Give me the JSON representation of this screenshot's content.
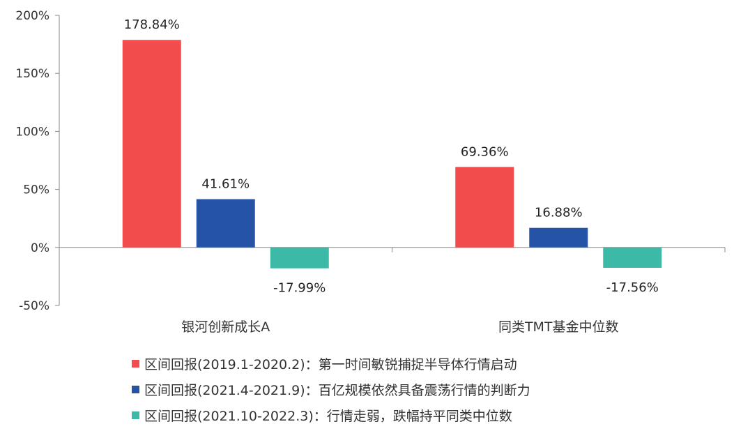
{
  "chart_data": {
    "type": "bar",
    "categories": [
      "银河创新成长A",
      "同类TMT基金中位数"
    ],
    "series": [
      {
        "name": "区间回报(2019.1-2020.2)：第一时间敏锐捕捉半导体行情启动",
        "values": [
          178.84,
          69.36
        ],
        "labels": [
          "178.84%",
          "69.36%"
        ],
        "color": "#f24c4c"
      },
      {
        "name": "区间回报(2021.4-2021.9)：百亿规模依然具备震荡行情的判断力",
        "values": [
          41.61,
          16.88
        ],
        "labels": [
          "41.61%",
          "16.88%"
        ],
        "color": "#2553a6"
      },
      {
        "name": "区间回报(2021.10-2022.3)：行情走弱，跌幅持平同类中位数",
        "values": [
          -17.99,
          -17.56
        ],
        "labels": [
          "-17.99%",
          "-17.56%"
        ],
        "color": "#3cb9a7"
      }
    ],
    "yticks": [
      {
        "value": 200,
        "label": "200%"
      },
      {
        "value": 150,
        "label": "150%"
      },
      {
        "value": 100,
        "label": "100%"
      },
      {
        "value": 50,
        "label": "50%"
      },
      {
        "value": 0,
        "label": "0%"
      },
      {
        "value": -50,
        "label": "-50%"
      }
    ],
    "ylim": [
      -50,
      200
    ],
    "grid": false,
    "legend_position": "bottom"
  }
}
